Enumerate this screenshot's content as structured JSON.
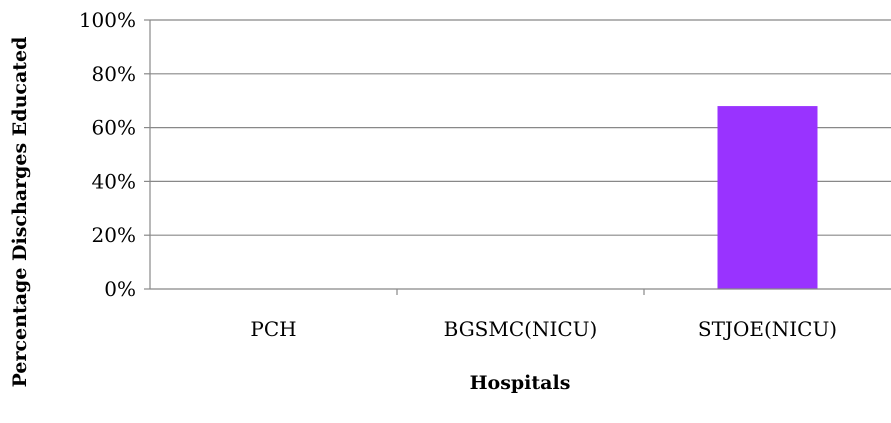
{
  "chart_data": {
    "type": "bar",
    "categories": [
      "PCH",
      "BGSMC(NICU)",
      "STJOE(NICU)"
    ],
    "values": [
      0,
      0,
      68
    ],
    "xlabel": "Hospitals",
    "ylabel": "Percentage Discharges Educated",
    "ylim": [
      0,
      100
    ],
    "y_ticks": [
      "0%",
      "20%",
      "40%",
      "60%",
      "80%",
      "100%"
    ],
    "grid": true,
    "bar_color": "#9933ff",
    "gridline_color": "#888888"
  }
}
